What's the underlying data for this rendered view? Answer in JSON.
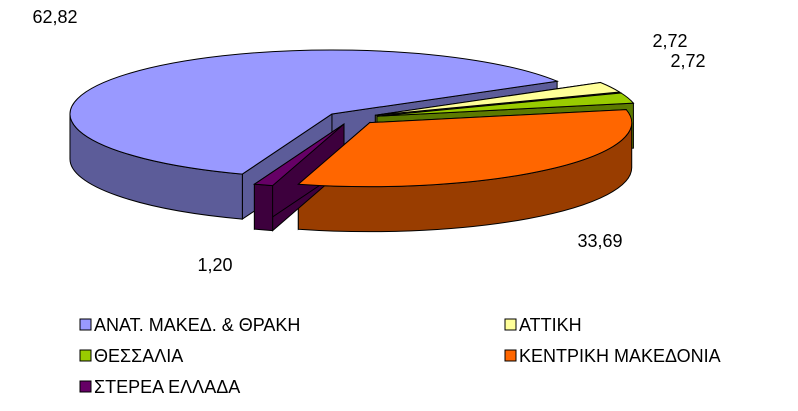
{
  "chart_data": {
    "type": "pie3d",
    "categories": [
      "ΑΝΑΤ. ΜΑΚΕΔ. & ΘΡΑΚΗ",
      "ΑΤΤΙΚΗ",
      "ΘΕΣΣΑΛΙΑ",
      "ΚΕΝΤΡΙΚΗ ΜΑΚΕΔΟΝΙΑ",
      "ΣΤΕΡΕΑ ΕΛΛΑΔΑ"
    ],
    "values": [
      62.82,
      2.72,
      2.72,
      33.69,
      1.2
    ],
    "value_labels": [
      "62,82",
      "2,72",
      "2,72",
      "33,69",
      "1,20"
    ],
    "colors": [
      "#9999ff",
      "#ffff99",
      "#99cc00",
      "#ff6600",
      "#660066"
    ],
    "legend": "bottom"
  }
}
